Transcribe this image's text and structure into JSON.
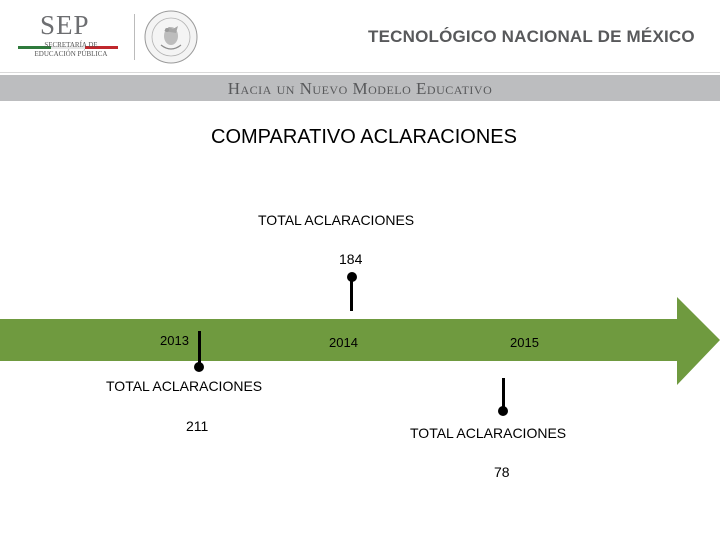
{
  "header": {
    "sep_logo_text": "SEP",
    "sep_subtitle": "SECRETARÍA DE\nEDUCACIÓN PÚBLICA",
    "seal_text": "ESTADOS UNIDOS MEXICANOS",
    "institution": "TECNOLÓGICO NACIONAL DE MÉXICO",
    "tagline": "Hacia un Nuevo Modelo Educativo"
  },
  "colors": {
    "sep_green": "#2f7a3c",
    "sep_white": "#ffffff",
    "sep_red": "#c0272d",
    "timeline_arrow": "#6f9a3f",
    "band": "#bcbdbf",
    "header_text": "#58595b"
  },
  "slide": {
    "title": "COMPARATIVO ACLARACIONES"
  },
  "timeline": {
    "events": [
      {
        "year": "2013",
        "label": "TOTAL ACLARACIONES",
        "value": "211"
      },
      {
        "year": "2014",
        "label": "TOTAL ACLARACIONES",
        "value": "184"
      },
      {
        "year": "2015",
        "label": "TOTAL ACLARACIONES",
        "value": "78"
      }
    ]
  }
}
